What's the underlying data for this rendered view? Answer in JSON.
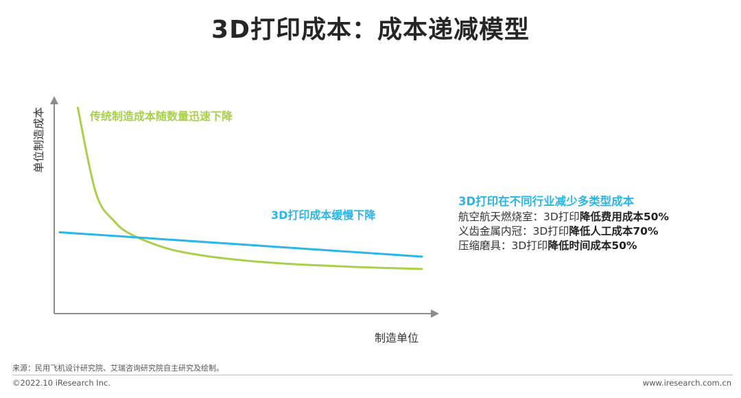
{
  "title": "3D打印成本：成本递减模型",
  "chart_data": {
    "type": "line",
    "xlabel": "制造单位",
    "ylabel": "单位制造成本",
    "grid": false,
    "series": [
      {
        "name": "传统制造成本随数量迅速下降",
        "color": "#A9D04A",
        "x": [
          0.5,
          1,
          1.5,
          2,
          3,
          4,
          5,
          6,
          7,
          8,
          9,
          10
        ],
        "y": [
          10,
          5.1,
          3.5,
          2.7,
          1.9,
          1.5,
          1.25,
          1.08,
          0.96,
          0.87,
          0.8,
          0.74
        ]
      },
      {
        "name": "3D打印成本缓慢下降",
        "color": "#29B6E8",
        "x": [
          0,
          10
        ],
        "y": [
          2.85,
          1.45
        ]
      }
    ]
  },
  "side_panel": {
    "title": "3D打印在不同行业减少多类型成本",
    "items": [
      {
        "prefix": "航空航天燃烧室：3D打印",
        "bold": "降低费用成本50%"
      },
      {
        "prefix": "义齿金属内冠：3D打印",
        "bold": "降低人工成本70%"
      },
      {
        "prefix": "压缩磨具：3D打印",
        "bold": "降低时间成本50%"
      }
    ]
  },
  "source": "来源：民用飞机设计研究院、艾瑞咨询研究院自主研究及绘制。",
  "footer": {
    "copyright": "©2022.10 iResearch Inc.",
    "website": "www.iresearch.com.cn"
  }
}
